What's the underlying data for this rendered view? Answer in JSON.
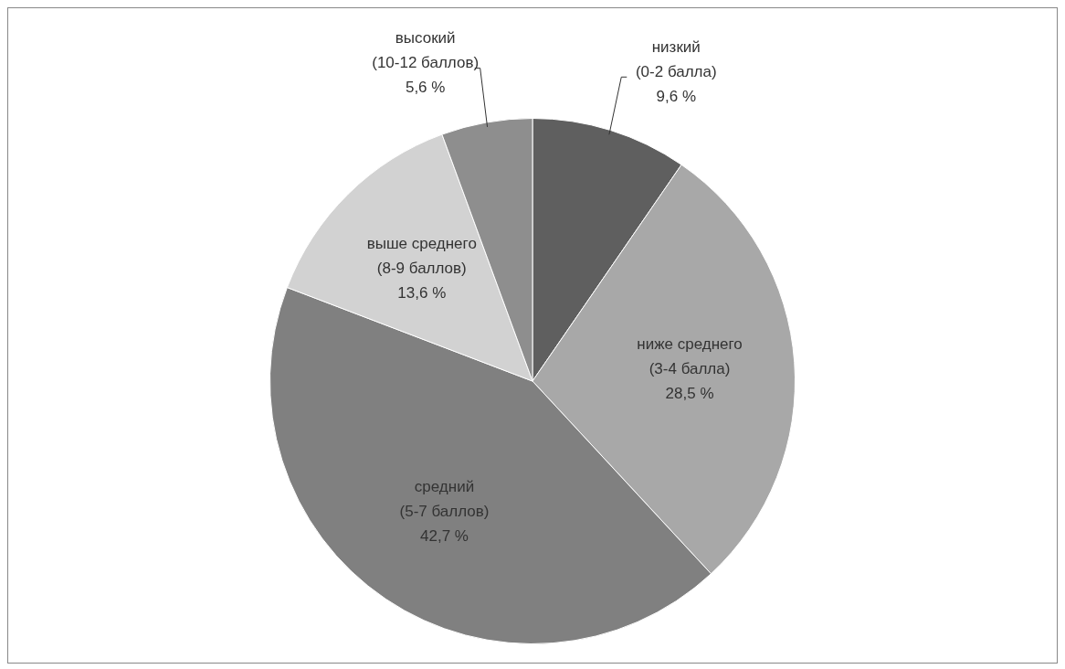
{
  "chart_data": {
    "type": "pie",
    "categories": [
      "низкий (0-2 балла)",
      "ниже среднего (3-4 балла)",
      "средний (5-7 баллов)",
      "выше среднего (8-9 баллов)",
      "высокий (10-12 баллов)"
    ],
    "values": [
      9.6,
      28.5,
      42.7,
      13.6,
      5.6
    ],
    "colors": [
      "#5f5f5f",
      "#a8a8a8",
      "#808080",
      "#d2d2d2",
      "#8e8e8e"
    ],
    "value_labels": [
      "9,6 %",
      "28,5 %",
      "42,7 %",
      "13,6 %",
      "5,6 %"
    ],
    "legend": false
  }
}
